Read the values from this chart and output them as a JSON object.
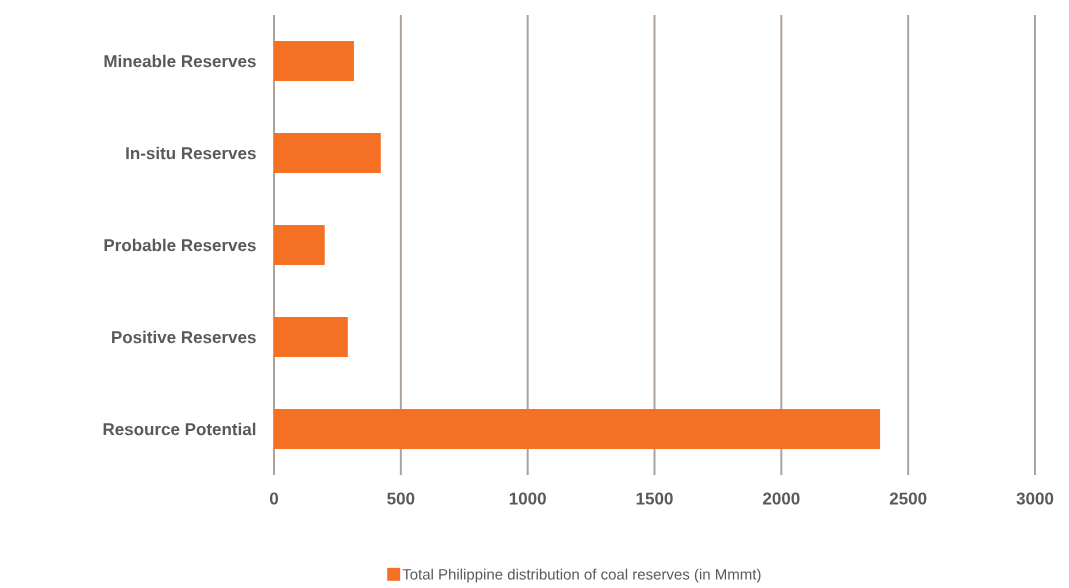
{
  "chart_data": {
    "type": "bar",
    "orientation": "horizontal",
    "categories": [
      "Mineable Reserves",
      "In-situ Reserves",
      "Probable Reserves",
      "Positive Reserves",
      "Resource Potential"
    ],
    "series": [
      {
        "name": "Total Philippine distribution of coal reserves (in Mmmt)",
        "color": "#f47024",
        "values": [
          315,
          421,
          200,
          291,
          2390
        ]
      }
    ],
    "xlim": [
      0,
      3000
    ],
    "xticks": [
      0,
      500,
      1000,
      1500,
      2000,
      2500,
      3000
    ],
    "grid": "x",
    "legend": "bottom"
  }
}
